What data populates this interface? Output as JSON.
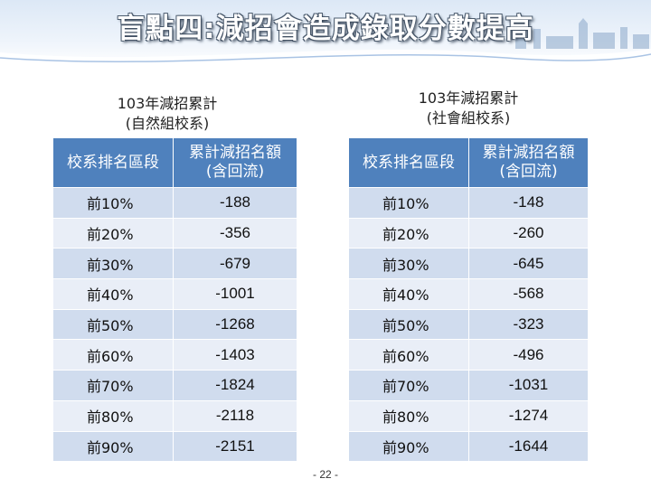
{
  "title": "盲點四:減招會造成錄取分數提高",
  "left": {
    "caption_line1": "103年減招累計",
    "caption_line2": "(自然組校系)",
    "header_col1": "校系排名區段",
    "header_col2_line1": "累計減招名額",
    "header_col2_line2": "(含回流)",
    "rows": [
      {
        "range": "前10%",
        "value": "-188"
      },
      {
        "range": "前20%",
        "value": "-356"
      },
      {
        "range": "前30%",
        "value": "-679"
      },
      {
        "range": "前40%",
        "value": "-1001"
      },
      {
        "range": "前50%",
        "value": "-1268"
      },
      {
        "range": "前60%",
        "value": "-1403"
      },
      {
        "range": "前70%",
        "value": "-1824"
      },
      {
        "range": "前80%",
        "value": "-2118"
      },
      {
        "range": "前90%",
        "value": "-2151"
      }
    ]
  },
  "right": {
    "caption_line1": "103年減招累計",
    "caption_line2": "(社會組校系)",
    "header_col1": "校系排名區段",
    "header_col2_line1": "累計減招名額",
    "header_col2_line2": "(含回流)",
    "rows": [
      {
        "range": "前10%",
        "value": "-148"
      },
      {
        "range": "前20%",
        "value": "-260"
      },
      {
        "range": "前30%",
        "value": "-645"
      },
      {
        "range": "前40%",
        "value": "-568"
      },
      {
        "range": "前50%",
        "value": "-323"
      },
      {
        "range": "前60%",
        "value": "-496"
      },
      {
        "range": "前70%",
        "value": "-1031"
      },
      {
        "range": "前80%",
        "value": "-1274"
      },
      {
        "range": "前90%",
        "value": "-1644"
      }
    ]
  },
  "page_number": "- 22 -",
  "colors": {
    "header_blue": "#4f81bd",
    "row_dark": "#d0dcee",
    "row_light": "#e9eef7"
  }
}
